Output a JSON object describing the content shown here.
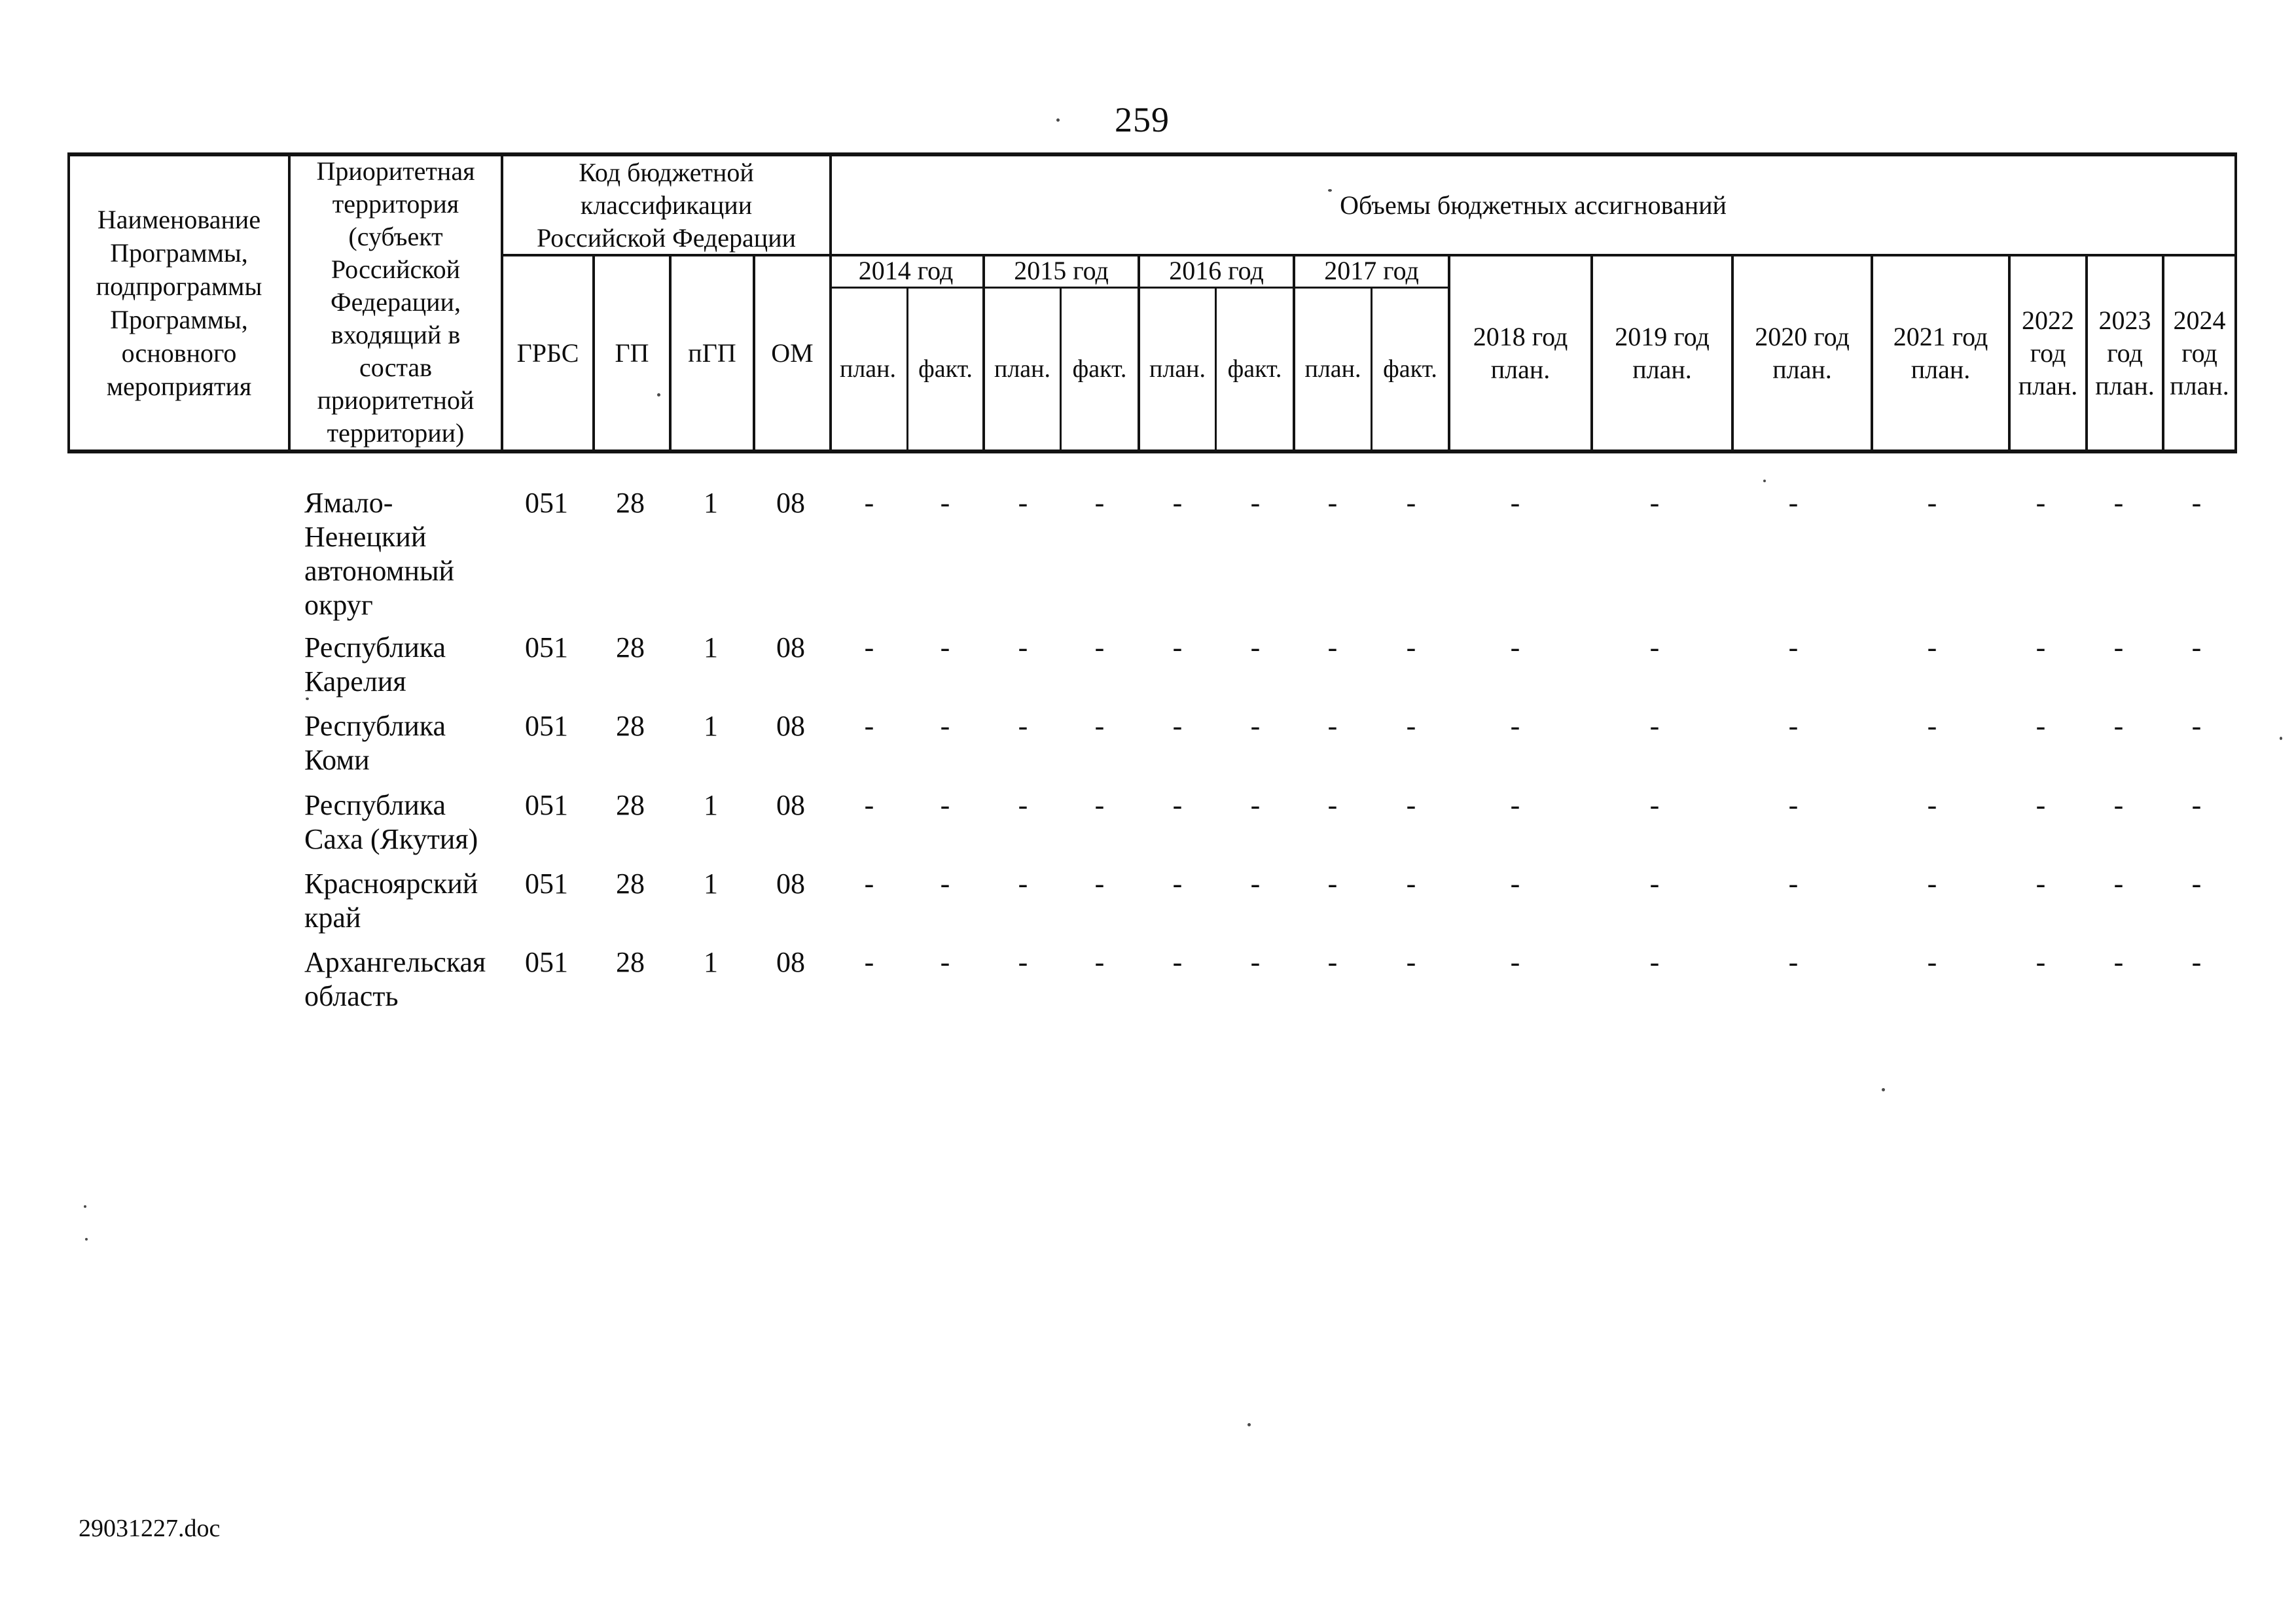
{
  "page": {
    "number": "259",
    "footer_filename": "29031227.doc"
  },
  "table": {
    "header": {
      "name_lines": [
        "Наименование",
        "Программы,",
        "подпрограммы",
        "Программы,",
        "основного",
        "мероприятия"
      ],
      "territory_lines": [
        "Приоритетная",
        "территория",
        "(субъект",
        "Российской",
        "Федерации,",
        "входящий в",
        "состав",
        "приоритетной",
        "территории)"
      ],
      "budget_code_lines": [
        "Код бюджетной",
        "классификации",
        "Российской Федерации"
      ],
      "code_columns": [
        "ГРБС",
        "ГП",
        "пГП",
        "ОМ"
      ],
      "volumes_title": "Объемы бюджетных ассигнований",
      "fact_years": [
        {
          "year": "2014 год",
          "plan": "план.",
          "fact": "факт."
        },
        {
          "year": "2015 год",
          "plan": "план.",
          "fact": "факт."
        },
        {
          "year": "2016 год",
          "plan": "план.",
          "fact": "факт."
        },
        {
          "year": "2017 год",
          "plan": "план.",
          "fact": "факт."
        }
      ],
      "plan_years_wide": [
        [
          "2018 год",
          "план."
        ],
        [
          "2019 год",
          "план."
        ],
        [
          "2020 год",
          "план."
        ],
        [
          "2021 год",
          "план."
        ]
      ],
      "plan_years_narrow": [
        [
          "2022",
          "год",
          "план."
        ],
        [
          "2023",
          "год",
          "план."
        ],
        [
          "2024",
          "год",
          "план."
        ]
      ]
    },
    "rows": [
      {
        "territory_lines": [
          "Ямало-",
          "Ненецкий",
          "автономный",
          "округ"
        ],
        "codes": [
          "051",
          "28",
          "1",
          "08"
        ],
        "values": [
          "-",
          "-",
          "-",
          "-",
          "-",
          "-",
          "-",
          "-",
          "-",
          "-",
          "-",
          "-",
          "-",
          "-",
          "-"
        ]
      },
      {
        "territory_lines": [
          "Республика",
          "Карелия"
        ],
        "codes": [
          "051",
          "28",
          "1",
          "08"
        ],
        "values": [
          "-",
          "-",
          "-",
          "-",
          "-",
          "-",
          "-",
          "-",
          "-",
          "-",
          "-",
          "-",
          "-",
          "-",
          "-"
        ]
      },
      {
        "territory_lines": [
          "Республика",
          "Коми"
        ],
        "codes": [
          "051",
          "28",
          "1",
          "08"
        ],
        "values": [
          "-",
          "-",
          "-",
          "-",
          "-",
          "-",
          "-",
          "-",
          "-",
          "-",
          "-",
          "-",
          "-",
          "-",
          "-"
        ]
      },
      {
        "territory_lines": [
          "Республика",
          "Саха (Якутия)"
        ],
        "codes": [
          "051",
          "28",
          "1",
          "08"
        ],
        "values": [
          "-",
          "-",
          "-",
          "-",
          "-",
          "-",
          "-",
          "-",
          "-",
          "-",
          "-",
          "-",
          "-",
          "-",
          "-"
        ]
      },
      {
        "territory_lines": [
          "Красноярский",
          "край"
        ],
        "codes": [
          "051",
          "28",
          "1",
          "08"
        ],
        "values": [
          "-",
          "-",
          "-",
          "-",
          "-",
          "-",
          "-",
          "-",
          "-",
          "-",
          "-",
          "-",
          "-",
          "-",
          "-"
        ]
      },
      {
        "territory_lines": [
          "Архангельская",
          "область"
        ],
        "codes": [
          "051",
          "28",
          "1",
          "08"
        ],
        "values": [
          "-",
          "-",
          "-",
          "-",
          "-",
          "-",
          "-",
          "-",
          "-",
          "-",
          "-",
          "-",
          "-",
          "-",
          "-"
        ]
      }
    ]
  }
}
